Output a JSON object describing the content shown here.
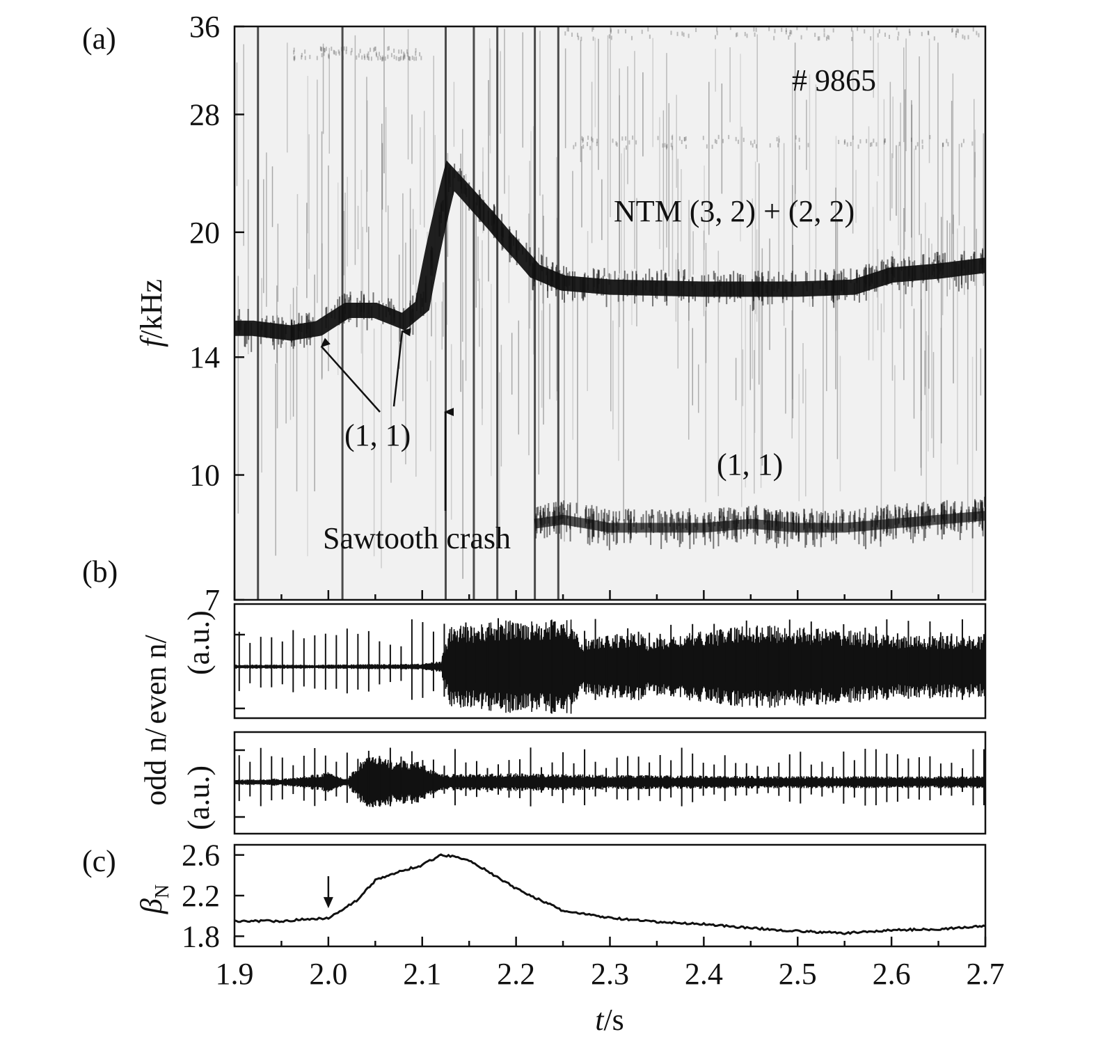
{
  "figure": {
    "panel_labels": [
      "(a)",
      "(b)",
      "(c)"
    ],
    "shot_label": "# 9865",
    "x_axis_label_t": "t",
    "x_axis_label_unit": "/s"
  },
  "chart_data": [
    {
      "panel": "(a)",
      "type": "heatmap",
      "title": "",
      "ylabel_f": "f",
      "ylabel_unit": "/kHz",
      "y_scale": "log",
      "ylim": [
        7,
        36
      ],
      "xlim": [
        1.9,
        2.7
      ],
      "y_ticks": [
        "36",
        "28",
        "20",
        "14",
        "10",
        "7"
      ],
      "y_tick_values": [
        36,
        28,
        20,
        14,
        10,
        7
      ],
      "colormap": "grayscale (dark = high amplitude)",
      "annotations": [
        {
          "text": "NTM (3, 2) + (2, 2)",
          "t": 2.5,
          "f": 21.2
        },
        {
          "text": "(1, 1)",
          "t": 2.43,
          "f": 10.2
        },
        {
          "text": "(1, 1)",
          "t": 2.06,
          "f": 11.2
        },
        {
          "text": "Sawtooth crash",
          "t": 2.12,
          "f": 8.1
        }
      ],
      "modes": [
        {
          "name": "NTM (3, 2) + (2, 2)",
          "t": [
            1.9,
            1.92,
            1.96,
            1.99,
            2.02,
            2.05,
            2.08,
            2.1,
            2.13,
            2.16,
            2.19,
            2.22,
            2.25,
            2.3,
            2.4,
            2.5,
            2.56,
            2.6,
            2.65,
            2.7
          ],
          "f": [
            15.2,
            15.2,
            15.0,
            15.2,
            16.0,
            16.0,
            15.5,
            16.2,
            23.5,
            21.5,
            19.6,
            17.9,
            17.3,
            17.1,
            17.0,
            17.0,
            17.1,
            17.7,
            17.9,
            18.2
          ]
        },
        {
          "name": "(1, 1)",
          "t": [
            2.22,
            2.25,
            2.3,
            2.35,
            2.4,
            2.45,
            2.5,
            2.55,
            2.6,
            2.65,
            2.7
          ],
          "f": [
            8.7,
            8.8,
            8.6,
            8.6,
            8.6,
            8.7,
            8.6,
            8.6,
            8.7,
            8.8,
            8.9
          ]
        }
      ]
    },
    {
      "panel": "(b)",
      "type": "line",
      "title": "",
      "xlim": [
        1.9,
        2.7
      ],
      "traces": [
        {
          "ylabel": "even n/",
          "yunit": "(a.u.)",
          "description": "quiet until t=2.13 s, then large-amplitude oscillation with envelope dips near 2.26 and 2.33 s",
          "t": [
            1.9,
            2.0,
            2.1,
            2.12,
            2.13,
            2.2,
            2.26,
            2.27,
            2.33,
            2.34,
            2.45,
            2.55,
            2.6,
            2.7
          ],
          "envelope": [
            0.04,
            0.04,
            0.06,
            0.12,
            0.8,
            0.95,
            0.95,
            0.55,
            0.7,
            0.55,
            0.85,
            0.75,
            0.62,
            0.62
          ]
        },
        {
          "ylabel": "odd n/",
          "yunit": "(a.u.)",
          "description": "bursts near 2.0 s and 2.05–2.10 s, then small oscillation",
          "t": [
            1.9,
            1.96,
            2.0,
            2.02,
            2.04,
            2.07,
            2.1,
            2.12,
            2.2,
            2.3,
            2.5,
            2.7
          ],
          "envelope": [
            0.06,
            0.1,
            0.25,
            0.08,
            0.7,
            0.55,
            0.5,
            0.2,
            0.22,
            0.18,
            0.15,
            0.15
          ]
        }
      ]
    },
    {
      "panel": "(c)",
      "type": "line",
      "title": "",
      "ylabel_beta": "β",
      "ylabel_sub": "N",
      "ylim": [
        1.7,
        2.7
      ],
      "xlim": [
        1.9,
        2.7
      ],
      "y_ticks": [
        "2.6",
        "2.2",
        "1.8"
      ],
      "y_tick_values": [
        2.6,
        2.2,
        1.8
      ],
      "x_ticks": [
        "1.9",
        "2.0",
        "2.1",
        "2.2",
        "2.3",
        "2.4",
        "2.5",
        "2.6",
        "2.7"
      ],
      "x_tick_values": [
        1.9,
        2.0,
        2.1,
        2.2,
        2.3,
        2.4,
        2.5,
        2.6,
        2.7
      ],
      "series": [
        {
          "t": [
            1.9,
            1.95,
            2.0,
            2.03,
            2.05,
            2.08,
            2.1,
            2.12,
            2.13,
            2.15,
            2.18,
            2.2,
            2.25,
            2.3,
            2.35,
            2.4,
            2.45,
            2.5,
            2.55,
            2.6,
            2.65,
            2.7
          ],
          "values": [
            1.95,
            1.95,
            1.98,
            2.15,
            2.35,
            2.45,
            2.5,
            2.6,
            2.59,
            2.55,
            2.38,
            2.27,
            2.05,
            1.98,
            1.94,
            1.92,
            1.88,
            1.85,
            1.83,
            1.86,
            1.87,
            1.9
          ]
        }
      ],
      "marker_arrow_t": 2.0
    }
  ]
}
